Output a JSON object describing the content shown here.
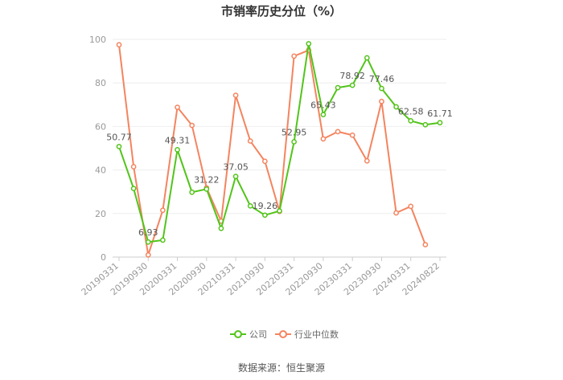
{
  "chart_data": {
    "type": "line",
    "title": "市销率历史分位（%）",
    "xlabel": "",
    "ylabel": "",
    "ylim": [
      0,
      100
    ],
    "yticks": [
      0,
      20,
      40,
      60,
      80,
      100
    ],
    "grid": true,
    "legend_position": "bottom",
    "x_tick_labels": [
      "20190331",
      "20190930",
      "20200331",
      "20200930",
      "20210331",
      "20210930",
      "20220331",
      "20220930",
      "20230331",
      "20230930",
      "20240331",
      "20240822"
    ],
    "series": [
      {
        "name": "公司",
        "color": "#52c41a",
        "x_index": [
          0,
          1,
          2,
          3,
          4,
          5,
          6,
          7,
          8,
          9,
          10,
          11,
          12,
          13,
          14,
          15,
          16,
          17,
          18,
          19,
          20,
          21,
          22
        ],
        "values": [
          50.77,
          31.5,
          6.93,
          7.8,
          49.31,
          29.8,
          31.22,
          13.2,
          37.05,
          23.5,
          19.26,
          21.2,
          52.95,
          98.0,
          65.43,
          77.8,
          78.92,
          91.5,
          77.46,
          69.0,
          62.58,
          60.8,
          61.71
        ],
        "labels": [
          {
            "index": 0,
            "text": "50.77"
          },
          {
            "index": 2,
            "text": "6.93"
          },
          {
            "index": 4,
            "text": "49.31"
          },
          {
            "index": 6,
            "text": "31.22"
          },
          {
            "index": 8,
            "text": "37.05"
          },
          {
            "index": 10,
            "text": "19.26"
          },
          {
            "index": 12,
            "text": "52.95"
          },
          {
            "index": 14,
            "text": "65.43"
          },
          {
            "index": 16,
            "text": "78.92"
          },
          {
            "index": 18,
            "text": "77.46"
          },
          {
            "index": 20,
            "text": "62.58"
          },
          {
            "index": 22,
            "text": "61.71"
          }
        ]
      },
      {
        "name": "行业中位数",
        "color": "#f4845f",
        "x_index": [
          0,
          1,
          2,
          3,
          4,
          5,
          6,
          7,
          8,
          9,
          10,
          11,
          12,
          13,
          14,
          15,
          16,
          17,
          18,
          19,
          20,
          21
        ],
        "values": [
          97.5,
          41.5,
          1.0,
          21.5,
          68.8,
          60.5,
          31.8,
          16.5,
          74.3,
          53.3,
          44.0,
          21.0,
          92.3,
          95.0,
          54.3,
          57.6,
          56.0,
          44.2,
          71.5,
          20.3,
          23.3,
          5.7
        ]
      }
    ]
  },
  "source": "数据来源：恒生聚源"
}
